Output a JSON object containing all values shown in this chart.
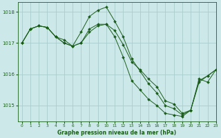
{
  "background_color": "#cce8e8",
  "grid_color": "#aacccc",
  "line_color": "#1a5e1a",
  "title": "Graphe pression niveau de la mer (hPa)",
  "xlim": [
    -0.5,
    23
  ],
  "ylim": [
    1014.5,
    1018.3
  ],
  "yticks": [
    1015,
    1016,
    1017,
    1018
  ],
  "xticks": [
    0,
    1,
    2,
    3,
    4,
    5,
    6,
    7,
    8,
    9,
    10,
    11,
    12,
    13,
    14,
    15,
    16,
    17,
    18,
    19,
    20,
    21,
    22,
    23
  ],
  "series": [
    [
      1017.0,
      1017.45,
      1017.55,
      1017.5,
      1017.2,
      1017.1,
      1016.9,
      1017.0,
      1017.35,
      1017.55,
      1017.6,
      1017.4,
      1016.95,
      1016.4,
      1016.15,
      1015.85,
      1015.6,
      1015.15,
      1015.05,
      1014.75,
      1014.85,
      1015.85,
      1015.75,
      1016.15
    ],
    [
      1017.0,
      1017.45,
      1017.55,
      1017.5,
      1017.2,
      1017.0,
      1016.9,
      1017.35,
      1017.85,
      1018.05,
      1018.15,
      1017.7,
      1017.2,
      1016.5,
      1016.1,
      1015.7,
      1015.4,
      1015.0,
      1014.9,
      1014.7,
      1014.85,
      1015.75,
      1015.95,
      1016.15
    ],
    [
      1017.0,
      1017.45,
      1017.55,
      1017.5,
      1017.2,
      1017.0,
      1016.9,
      1017.0,
      1017.45,
      1017.6,
      1017.6,
      1017.2,
      1016.55,
      1015.8,
      1015.5,
      1015.2,
      1015.0,
      1014.75,
      1014.7,
      1014.65,
      1014.85,
      1015.8,
      1015.95,
      1016.15
    ]
  ]
}
